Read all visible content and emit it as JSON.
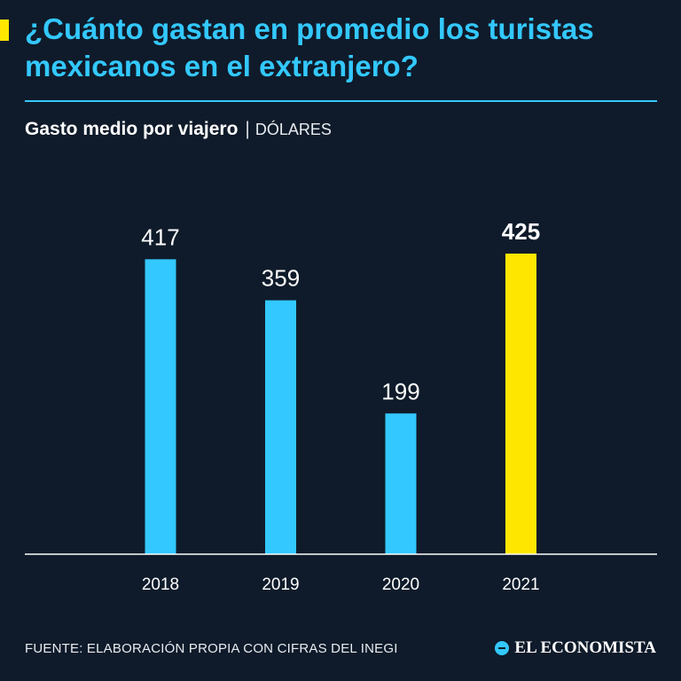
{
  "header": {
    "title": "¿Cuánto gastan en promedio los turistas mexicanos en el extranjero?",
    "subtitle_bold": "Gasto medio por viajero",
    "subtitle_sep": "|",
    "subtitle_unit": "DÓLARES"
  },
  "footer": {
    "source": "FUENTE: ELABORACIÓN PROPIA CON CIFRAS DEL INEGI",
    "brand": "EL ECONOMISTA"
  },
  "colors": {
    "background": "#0f1b2a",
    "accent_blue": "#33c8ff",
    "highlight_yellow": "#ffe600",
    "text": "#ffffff"
  },
  "chart_data": {
    "type": "bar",
    "title": "¿Cuánto gastan en promedio los turistas mexicanos en el extranjero?",
    "ylabel": "Gasto medio por viajero (dólares)",
    "xlabel": "",
    "categories": [
      "2018",
      "2019",
      "2020",
      "2021"
    ],
    "values": [
      417,
      359,
      199,
      425
    ],
    "value_labels": [
      "417",
      "359",
      "199",
      "425"
    ],
    "highlighted": [
      false,
      false,
      false,
      true
    ],
    "ylim": [
      0,
      425
    ],
    "grid": false,
    "legend": "none"
  }
}
